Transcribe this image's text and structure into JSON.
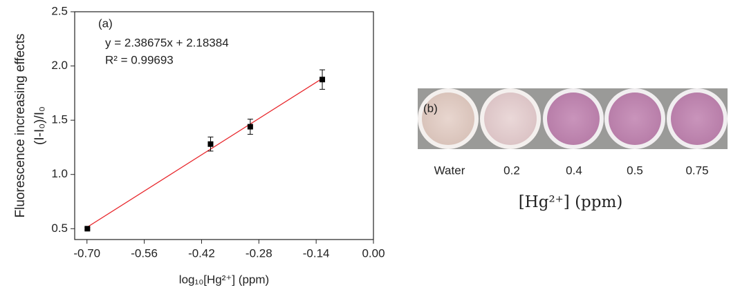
{
  "chart_data": {
    "type": "scatter",
    "x": [
      -0.699,
      -0.398,
      -0.301,
      -0.125
    ],
    "series": [
      {
        "color": "#000000",
        "values": [
          0.5,
          1.28,
          1.44,
          1.875
        ],
        "errors": [
          0.01,
          0.065,
          0.07,
          0.09
        ]
      }
    ],
    "fit_line": {
      "color": "#e8262b",
      "x": [
        -0.699,
        -0.125
      ],
      "values": [
        0.515,
        1.885
      ]
    },
    "xlim": [
      -0.73,
      0.0
    ],
    "ylim": [
      0.4,
      2.5
    ],
    "xticks": [
      {
        "value": -0.7,
        "label": "-0.70"
      },
      {
        "value": -0.56,
        "label": "-0.56"
      },
      {
        "value": -0.42,
        "label": "-0.42"
      },
      {
        "value": -0.28,
        "label": "-0.28"
      },
      {
        "value": -0.14,
        "label": "-0.14"
      },
      {
        "value": 0,
        "label": "0.00"
      }
    ],
    "yticks": [
      0.5,
      {
        "value": 1,
        "label": "1.0"
      },
      1.5,
      {
        "value": 2,
        "label": "2.0"
      },
      2.5
    ],
    "x_label": "log₁₀[Hg²⁺] (ppm)",
    "y_label": [
      "Fluorescence increasing effects",
      "(I-I₀)/I₀"
    ],
    "annotations": [
      "(a)",
      "y = 2.38675x + 2.18384",
      "R² = 0.99693"
    ]
  },
  "photo_panel": {
    "label": "(b)",
    "well_labels": [
      "Water",
      "0.2",
      "0.4",
      "0.5",
      "0.75"
    ],
    "axis_label": "[Hg²⁺] (ppm)"
  }
}
